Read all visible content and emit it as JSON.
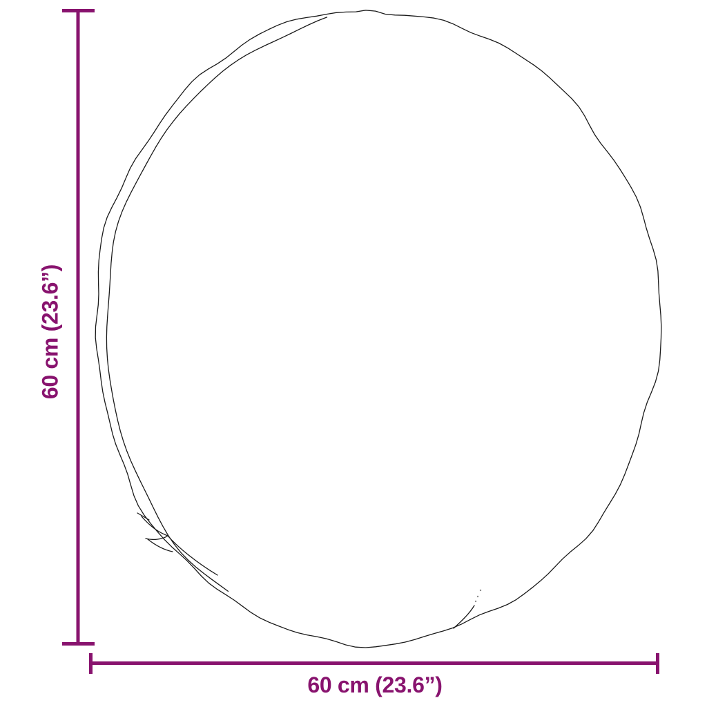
{
  "diagram": {
    "type": "product-dimension-diagram",
    "subject": "round-cushion-outline-top-view",
    "labels": {
      "height_label": "60 cm (23.6”)",
      "width_label": "60 cm (23.6”)"
    },
    "dimensions": {
      "width_cm": 60,
      "height_cm": 60,
      "width_inches": 23.6,
      "height_inches": 23.6
    },
    "colors": {
      "dimension": "#88136e",
      "outline": "#1a1a1a",
      "background": "#ffffff"
    }
  }
}
